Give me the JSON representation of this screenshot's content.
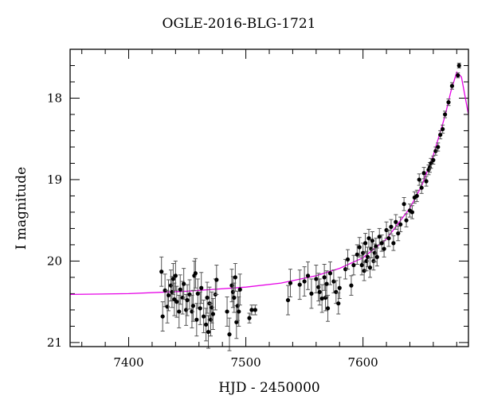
{
  "chart_data": {
    "type": "scatter",
    "title": "OGLE-2016-BLG-1721",
    "xlabel": "HJD - 2450000",
    "ylabel": "I magnitude",
    "xlim": [
      7350,
      7690
    ],
    "ylim": [
      21.05,
      17.4
    ],
    "y_inverted": true,
    "x_ticks": [
      7400,
      7500,
      7600
    ],
    "y_ticks": [
      18,
      19,
      20,
      21
    ],
    "grid": false,
    "colors": {
      "points": "#000000",
      "errorbars": "#555555",
      "model": "#e600e6"
    },
    "series": [
      {
        "kind": "points_with_errorbars",
        "x": [
          7428,
          7429,
          7431,
          7433,
          7434,
          7436,
          7437,
          7438,
          7439,
          7440,
          7441,
          7443,
          7444,
          7446,
          7447,
          7449,
          7450,
          7452,
          7454,
          7455,
          7456,
          7457,
          7458,
          7459,
          7461,
          7462,
          7464,
          7466,
          7467,
          7468,
          7469,
          7470,
          7471,
          7472,
          7474,
          7475,
          7484,
          7486,
          7488,
          7489,
          7490,
          7491,
          7492,
          7493,
          7494,
          7495,
          7503,
          7505,
          7508,
          7536,
          7538,
          7546,
          7550,
          7553,
          7556,
          7560,
          7562,
          7563,
          7565,
          7567,
          7568,
          7569,
          7570,
          7572,
          7575,
          7577,
          7579,
          7580,
          7585,
          7587,
          7590,
          7592,
          7595,
          7597,
          7599,
          7600,
          7601,
          7602,
          7603,
          7604,
          7605,
          7606,
          7607,
          7608,
          7609,
          7610,
          7611,
          7612,
          7614,
          7616,
          7618,
          7620,
          7622,
          7624,
          7626,
          7628,
          7630,
          7632,
          7635,
          7637,
          7640,
          7642,
          7644,
          7646,
          7648,
          7650,
          7652,
          7654,
          7656,
          7657,
          7658,
          7660,
          7662,
          7664,
          7666,
          7668,
          7670,
          7673,
          7676,
          7681,
          7682
        ],
        "y": [
          20.13,
          20.68,
          20.36,
          20.56,
          20.42,
          20.3,
          20.38,
          20.22,
          20.47,
          20.18,
          20.5,
          20.62,
          20.35,
          20.45,
          20.28,
          20.6,
          20.48,
          20.41,
          20.62,
          20.55,
          20.18,
          20.15,
          20.72,
          20.4,
          20.58,
          20.33,
          20.68,
          20.78,
          20.45,
          20.87,
          20.52,
          20.72,
          20.57,
          20.65,
          20.41,
          20.23,
          20.62,
          20.9,
          20.3,
          20.38,
          20.45,
          20.2,
          20.75,
          20.55,
          20.62,
          20.35,
          20.7,
          20.6,
          20.6,
          20.48,
          20.27,
          20.29,
          20.25,
          20.18,
          20.4,
          20.22,
          20.32,
          20.38,
          20.46,
          20.2,
          20.45,
          20.28,
          20.58,
          20.15,
          20.25,
          20.38,
          20.52,
          20.33,
          20.1,
          19.98,
          20.3,
          20.05,
          19.92,
          19.83,
          20.05,
          19.9,
          20.12,
          19.78,
          20.0,
          19.95,
          19.72,
          20.08,
          19.85,
          19.75,
          20.0,
          19.9,
          19.82,
          19.95,
          19.7,
          19.78,
          19.85,
          19.62,
          19.72,
          19.58,
          19.78,
          19.52,
          19.66,
          19.55,
          19.3,
          19.5,
          19.38,
          19.4,
          19.22,
          19.2,
          19.0,
          19.1,
          18.92,
          19.02,
          18.88,
          18.85,
          18.8,
          18.76,
          18.65,
          18.6,
          18.45,
          18.38,
          18.2,
          18.05,
          17.85,
          17.72,
          17.6
        ],
        "yerr": [
          0.18,
          0.18,
          0.2,
          0.2,
          0.19,
          0.19,
          0.19,
          0.19,
          0.2,
          0.18,
          0.19,
          0.2,
          0.18,
          0.2,
          0.19,
          0.19,
          0.19,
          0.18,
          0.2,
          0.19,
          0.18,
          0.18,
          0.2,
          0.18,
          0.2,
          0.19,
          0.2,
          0.2,
          0.19,
          0.2,
          0.2,
          0.2,
          0.19,
          0.19,
          0.19,
          0.18,
          0.18,
          0.2,
          0.2,
          0.19,
          0.18,
          0.17,
          0.2,
          0.18,
          0.18,
          0.19,
          0.06,
          0.06,
          0.06,
          0.18,
          0.17,
          0.18,
          0.18,
          0.17,
          0.18,
          0.17,
          0.17,
          0.16,
          0.17,
          0.16,
          0.16,
          0.16,
          0.16,
          0.14,
          0.14,
          0.14,
          0.13,
          0.13,
          0.12,
          0.12,
          0.12,
          0.12,
          0.12,
          0.12,
          0.12,
          0.12,
          0.12,
          0.12,
          0.12,
          0.12,
          0.11,
          0.12,
          0.11,
          0.11,
          0.11,
          0.11,
          0.1,
          0.11,
          0.1,
          0.1,
          0.1,
          0.1,
          0.1,
          0.09,
          0.09,
          0.09,
          0.09,
          0.09,
          0.08,
          0.08,
          0.08,
          0.08,
          0.07,
          0.07,
          0.07,
          0.07,
          0.07,
          0.06,
          0.06,
          0.06,
          0.06,
          0.05,
          0.05,
          0.05,
          0.05,
          0.05,
          0.04,
          0.04,
          0.04,
          0.03,
          0.03
        ]
      },
      {
        "kind": "model_curve",
        "x": [
          7350,
          7400,
          7450,
          7500,
          7530,
          7560,
          7580,
          7600,
          7620,
          7640,
          7650,
          7660,
          7670,
          7675,
          7680,
          7684,
          7690
        ],
        "y": [
          20.41,
          20.4,
          20.37,
          20.32,
          20.27,
          20.18,
          20.09,
          19.96,
          19.73,
          19.35,
          19.08,
          18.7,
          18.22,
          17.92,
          17.68,
          17.74,
          18.2
        ]
      }
    ]
  }
}
